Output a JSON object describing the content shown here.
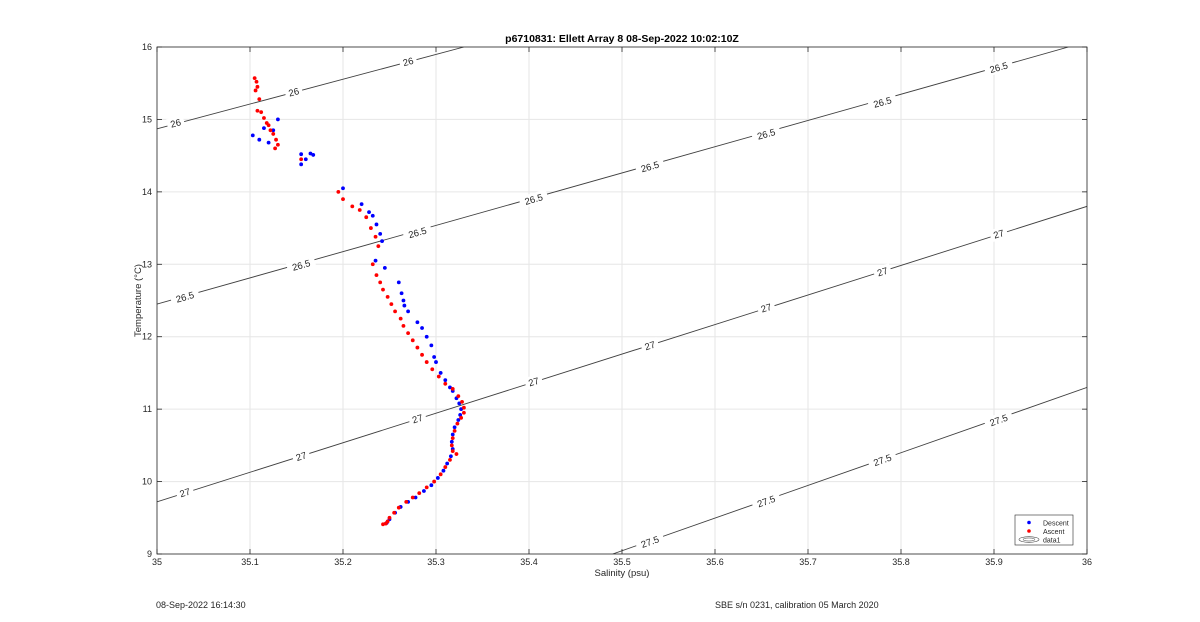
{
  "chart_data": {
    "type": "scatter",
    "title": "p6710831: Ellett Array 8 08-Sep-2022 10:02:10Z",
    "xlabel": "Salinity (psu)",
    "ylabel": "Temperature (°C)",
    "xlim": [
      35,
      36
    ],
    "ylim": [
      9,
      16
    ],
    "x_ticks": [
      "35",
      "35.1",
      "35.2",
      "35.3",
      "35.4",
      "35.5",
      "35.6",
      "35.7",
      "35.8",
      "35.9",
      "36"
    ],
    "y_ticks": [
      "9",
      "10",
      "11",
      "12",
      "13",
      "14",
      "15",
      "16"
    ],
    "grid": true,
    "legend_position": "bottom-right",
    "legend": [
      "Descent",
      "Ascent",
      "data1"
    ],
    "series": [
      {
        "name": "Descent",
        "color": "#0000ff",
        "marker": "dot",
        "points": [
          [
            35.103,
            14.78
          ],
          [
            35.11,
            14.72
          ],
          [
            35.115,
            14.88
          ],
          [
            35.12,
            14.68
          ],
          [
            35.125,
            14.85
          ],
          [
            35.13,
            15.0
          ],
          [
            35.155,
            14.52
          ],
          [
            35.16,
            14.45
          ],
          [
            35.165,
            14.53
          ],
          [
            35.168,
            14.51
          ],
          [
            35.155,
            14.38
          ],
          [
            35.2,
            14.05
          ],
          [
            35.22,
            13.83
          ],
          [
            35.228,
            13.72
          ],
          [
            35.232,
            13.67
          ],
          [
            35.236,
            13.55
          ],
          [
            35.24,
            13.42
          ],
          [
            35.242,
            13.32
          ],
          [
            35.235,
            13.05
          ],
          [
            35.245,
            12.95
          ],
          [
            35.26,
            12.75
          ],
          [
            35.263,
            12.6
          ],
          [
            35.265,
            12.5
          ],
          [
            35.266,
            12.43
          ],
          [
            35.27,
            12.35
          ],
          [
            35.28,
            12.2
          ],
          [
            35.285,
            12.12
          ],
          [
            35.29,
            12.0
          ],
          [
            35.295,
            11.88
          ],
          [
            35.298,
            11.72
          ],
          [
            35.3,
            11.65
          ],
          [
            35.305,
            11.5
          ],
          [
            35.31,
            11.4
          ],
          [
            35.315,
            11.3
          ],
          [
            35.318,
            11.25
          ],
          [
            35.322,
            11.15
          ],
          [
            35.325,
            11.08
          ],
          [
            35.327,
            11.0
          ],
          [
            35.326,
            10.92
          ],
          [
            35.324,
            10.85
          ],
          [
            35.32,
            10.75
          ],
          [
            35.318,
            10.65
          ],
          [
            35.317,
            10.55
          ],
          [
            35.318,
            10.45
          ],
          [
            35.316,
            10.35
          ],
          [
            35.312,
            10.25
          ],
          [
            35.308,
            10.15
          ],
          [
            35.302,
            10.05
          ],
          [
            35.295,
            9.95
          ],
          [
            35.287,
            9.87
          ],
          [
            35.278,
            9.78
          ],
          [
            35.27,
            9.72
          ],
          [
            35.262,
            9.65
          ],
          [
            35.256,
            9.57
          ],
          [
            35.25,
            9.48
          ],
          [
            35.247,
            9.43
          ]
        ]
      },
      {
        "name": "Ascent",
        "color": "#ff0000",
        "marker": "dot",
        "points": [
          [
            35.105,
            15.57
          ],
          [
            35.107,
            15.52
          ],
          [
            35.108,
            15.45
          ],
          [
            35.106,
            15.4
          ],
          [
            35.11,
            15.28
          ],
          [
            35.108,
            15.12
          ],
          [
            35.112,
            15.1
          ],
          [
            35.115,
            15.02
          ],
          [
            35.118,
            14.95
          ],
          [
            35.12,
            14.92
          ],
          [
            35.122,
            14.85
          ],
          [
            35.125,
            14.8
          ],
          [
            35.128,
            14.72
          ],
          [
            35.13,
            14.65
          ],
          [
            35.127,
            14.6
          ],
          [
            35.155,
            14.45
          ],
          [
            35.195,
            14.0
          ],
          [
            35.2,
            13.9
          ],
          [
            35.21,
            13.8
          ],
          [
            35.218,
            13.75
          ],
          [
            35.225,
            13.65
          ],
          [
            35.23,
            13.5
          ],
          [
            35.235,
            13.38
          ],
          [
            35.238,
            13.25
          ],
          [
            35.232,
            13.0
          ],
          [
            35.236,
            12.85
          ],
          [
            35.24,
            12.75
          ],
          [
            35.243,
            12.65
          ],
          [
            35.248,
            12.55
          ],
          [
            35.252,
            12.45
          ],
          [
            35.256,
            12.35
          ],
          [
            35.262,
            12.25
          ],
          [
            35.265,
            12.15
          ],
          [
            35.27,
            12.05
          ],
          [
            35.275,
            11.95
          ],
          [
            35.28,
            11.85
          ],
          [
            35.285,
            11.75
          ],
          [
            35.29,
            11.65
          ],
          [
            35.296,
            11.55
          ],
          [
            35.303,
            11.45
          ],
          [
            35.31,
            11.35
          ],
          [
            35.318,
            11.28
          ],
          [
            35.324,
            11.18
          ],
          [
            35.328,
            11.1
          ],
          [
            35.33,
            11.02
          ],
          [
            35.33,
            10.95
          ],
          [
            35.327,
            10.88
          ],
          [
            35.323,
            10.8
          ],
          [
            35.32,
            10.7
          ],
          [
            35.318,
            10.6
          ],
          [
            35.317,
            10.5
          ],
          [
            35.318,
            10.42
          ],
          [
            35.322,
            10.38
          ],
          [
            35.315,
            10.3
          ],
          [
            35.31,
            10.2
          ],
          [
            35.305,
            10.1
          ],
          [
            35.298,
            10.0
          ],
          [
            35.29,
            9.92
          ],
          [
            35.282,
            9.84
          ],
          [
            35.275,
            9.78
          ],
          [
            35.268,
            9.72
          ],
          [
            35.26,
            9.64
          ],
          [
            35.255,
            9.57
          ],
          [
            35.25,
            9.5
          ],
          [
            35.248,
            9.45
          ],
          [
            35.246,
            9.42
          ],
          [
            35.243,
            9.41
          ]
        ]
      }
    ],
    "contours": [
      {
        "label": "26",
        "points": [
          [
            35.0,
            14.87
          ],
          [
            35.33,
            16.0
          ]
        ],
        "label_positions": [
          [
            35.02,
            14.95
          ],
          [
            35.147,
            15.38
          ],
          [
            35.27,
            15.8
          ]
        ]
      },
      {
        "label": "26.5",
        "points": [
          [
            35.0,
            12.45
          ],
          [
            35.98,
            16.0
          ]
        ],
        "label_positions": [
          [
            35.03,
            12.55
          ],
          [
            35.155,
            12.99
          ],
          [
            35.28,
            13.44
          ],
          [
            35.405,
            13.9
          ],
          [
            35.53,
            14.35
          ],
          [
            35.655,
            14.8
          ],
          [
            35.78,
            15.24
          ],
          [
            35.905,
            15.72
          ]
        ]
      },
      {
        "label": "27",
        "points": [
          [
            35.0,
            9.72
          ],
          [
            36.0,
            13.8
          ]
        ],
        "label_positions": [
          [
            35.03,
            9.85
          ],
          [
            35.155,
            10.35
          ],
          [
            35.28,
            10.87
          ],
          [
            35.405,
            11.38
          ],
          [
            35.53,
            11.88
          ],
          [
            35.655,
            12.4
          ],
          [
            35.78,
            12.9
          ],
          [
            35.905,
            13.42
          ]
        ]
      },
      {
        "label": "27.5",
        "points": [
          [
            35.49,
            9.0
          ],
          [
            36.0,
            11.3
          ]
        ],
        "label_positions": [
          [
            35.53,
            9.17
          ],
          [
            35.655,
            9.73
          ],
          [
            35.78,
            10.3
          ],
          [
            35.905,
            10.85
          ]
        ]
      }
    ]
  },
  "footer": {
    "left": "08-Sep-2022 16:14:30",
    "right": "SBE s/n 0231, calibration 05 March 2020"
  }
}
